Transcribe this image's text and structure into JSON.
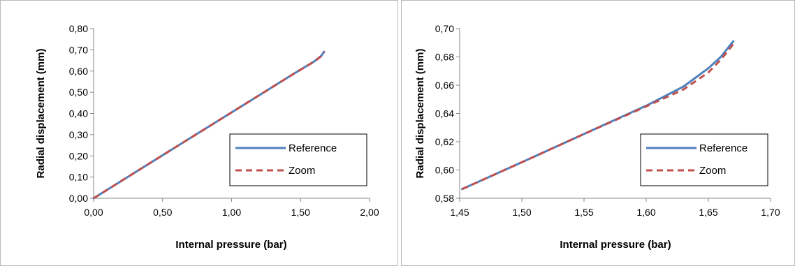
{
  "chart_data": [
    {
      "type": "line",
      "title": "",
      "xlabel": "Internal pressure (bar)",
      "ylabel": "Radial displacement (mm)",
      "xlim": [
        0,
        2
      ],
      "ylim": [
        0,
        0.8
      ],
      "xticks": [
        0,
        0.5,
        1.0,
        1.5,
        2.0
      ],
      "xtick_labels": [
        "0,00",
        "0,50",
        "1,00",
        "1,50",
        "2,00"
      ],
      "yticks": [
        0,
        0.1,
        0.2,
        0.3,
        0.4,
        0.5,
        0.6,
        0.7,
        0.8
      ],
      "ytick_labels": [
        "0,00",
        "0,10",
        "0,20",
        "0,30",
        "0,40",
        "0,50",
        "0,60",
        "0,70",
        "0,80"
      ],
      "grid": false,
      "legend_position": "lower-right",
      "series": [
        {
          "name": "Reference",
          "color": "#4f81bd",
          "style": "solid",
          "x": [
            0,
            0.5,
            1.0,
            1.45,
            1.6,
            1.65,
            1.67
          ],
          "y": [
            0,
            0.203,
            0.405,
            0.587,
            0.646,
            0.672,
            0.691
          ]
        },
        {
          "name": "Zoom",
          "color": "#c0504d",
          "style": "dashed",
          "x": [
            0,
            0.5,
            1.0,
            1.45,
            1.6,
            1.65,
            1.67
          ],
          "y": [
            0,
            0.203,
            0.405,
            0.587,
            0.645,
            0.67,
            0.689
          ]
        }
      ]
    },
    {
      "type": "line",
      "title": "",
      "xlabel": "Internal pressure (bar)",
      "ylabel": "Radial displacement (mm)",
      "xlim": [
        1.45,
        1.7
      ],
      "ylim": [
        0.58,
        0.7
      ],
      "xticks": [
        1.45,
        1.5,
        1.55,
        1.6,
        1.65,
        1.7
      ],
      "xtick_labels": [
        "1,45",
        "1,50",
        "1,55",
        "1,60",
        "1,65",
        "1,70"
      ],
      "yticks": [
        0.58,
        0.6,
        0.62,
        0.64,
        0.66,
        0.68,
        0.7
      ],
      "ytick_labels": [
        "0,58",
        "0,60",
        "0,62",
        "0,64",
        "0,66",
        "0,68",
        "0,70"
      ],
      "grid": false,
      "legend_position": "lower-right",
      "series": [
        {
          "name": "Reference",
          "color": "#4f81bd",
          "style": "solid",
          "x": [
            1.452,
            1.5,
            1.55,
            1.6,
            1.63,
            1.65,
            1.66,
            1.67
          ],
          "y": [
            0.5865,
            0.6055,
            0.6255,
            0.6455,
            0.659,
            0.672,
            0.68,
            0.691
          ]
        },
        {
          "name": "Zoom",
          "color": "#c0504d",
          "style": "dashed",
          "x": [
            1.452,
            1.5,
            1.55,
            1.6,
            1.63,
            1.65,
            1.66,
            1.67
          ],
          "y": [
            0.5865,
            0.6055,
            0.6255,
            0.645,
            0.657,
            0.669,
            0.678,
            0.689
          ]
        }
      ]
    }
  ]
}
